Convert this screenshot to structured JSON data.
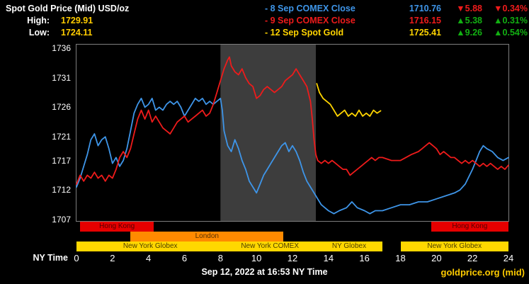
{
  "header": {
    "title": "Spot Gold Price (Mid) USD/oz",
    "high_label": "High:",
    "high_value": "1729.91",
    "low_label": "Low:",
    "low_value": "1724.11",
    "legend": [
      {
        "label": "- 8 Sep COMEX Close",
        "value": "1710.76",
        "change": "▼5.88",
        "change_pct": "▼0.34%",
        "color": "#3e95e8",
        "change_color": "#ee1b1b"
      },
      {
        "label": "- 9 Sep COMEX Close",
        "value": "1716.15",
        "change": "▲5.38",
        "change_pct": "▲0.31%",
        "color": "#ee1b1b",
        "change_color": "#12b012"
      },
      {
        "label": "- 12 Sep Spot Gold",
        "value": "1725.41",
        "change": "▲9.26",
        "change_pct": "▲0.54%",
        "color": "#ffd400",
        "change_color": "#12b012"
      }
    ]
  },
  "footer": {
    "timestamp": "Sep 12, 2022 at 16:53 NY Time",
    "source": "goldprice.org (mid)"
  },
  "colors": {
    "gold": "#ffcc00",
    "white": "#ffffff",
    "up_green": "#12b012",
    "down_red": "#ee1b1b",
    "background": "#000000",
    "plot_border": "#7e7e7e"
  },
  "chart_data": {
    "type": "line",
    "x_label": "NY Time",
    "x_range": [
      0,
      24
    ],
    "x_ticks": [
      "0",
      "2",
      "4",
      "6",
      "8",
      "10",
      "12",
      "14",
      "16",
      "18",
      "20",
      "22",
      "24"
    ],
    "y_ticks": [
      "1736",
      "1731",
      "1726",
      "1721",
      "1717",
      "1712",
      "1707"
    ],
    "y_range": [
      1707,
      1736
    ],
    "grid": false,
    "shade_color": "#3d3d3d",
    "comex_session_shade": {
      "start": 8,
      "end": 13.3
    },
    "series": [
      {
        "name": "8 Sep COMEX Close",
        "color": "#3e95e8",
        "points": [
          [
            0,
            1712.5
          ],
          [
            0.2,
            1714
          ],
          [
            0.4,
            1716
          ],
          [
            0.6,
            1718
          ],
          [
            0.8,
            1720.5
          ],
          [
            1,
            1721.5
          ],
          [
            1.2,
            1719.5
          ],
          [
            1.4,
            1720.5
          ],
          [
            1.6,
            1721
          ],
          [
            1.8,
            1719
          ],
          [
            2,
            1716.5
          ],
          [
            2.2,
            1717.5
          ],
          [
            2.4,
            1716
          ],
          [
            2.6,
            1717
          ],
          [
            2.8,
            1719
          ],
          [
            3,
            1722
          ],
          [
            3.2,
            1725
          ],
          [
            3.4,
            1726.5
          ],
          [
            3.6,
            1727.5
          ],
          [
            3.8,
            1726
          ],
          [
            4,
            1726.5
          ],
          [
            4.2,
            1727.5
          ],
          [
            4.4,
            1725.5
          ],
          [
            4.6,
            1726
          ],
          [
            4.8,
            1725.5
          ],
          [
            5,
            1726.5
          ],
          [
            5.2,
            1727
          ],
          [
            5.4,
            1726.5
          ],
          [
            5.6,
            1727
          ],
          [
            5.8,
            1726
          ],
          [
            6,
            1724.5
          ],
          [
            6.2,
            1725.5
          ],
          [
            6.4,
            1726.5
          ],
          [
            6.6,
            1727.5
          ],
          [
            6.8,
            1727
          ],
          [
            7,
            1727.5
          ],
          [
            7.2,
            1726.5
          ],
          [
            7.4,
            1727
          ],
          [
            7.6,
            1726.5
          ],
          [
            7.8,
            1727
          ],
          [
            8,
            1727.5
          ],
          [
            8.1,
            1725.5
          ],
          [
            8.2,
            1722
          ],
          [
            8.4,
            1719.5
          ],
          [
            8.6,
            1718.5
          ],
          [
            8.8,
            1720.5
          ],
          [
            9,
            1719
          ],
          [
            9.2,
            1717
          ],
          [
            9.4,
            1715.5
          ],
          [
            9.6,
            1713.5
          ],
          [
            9.8,
            1712.5
          ],
          [
            10,
            1711.5
          ],
          [
            10.2,
            1713
          ],
          [
            10.4,
            1714.5
          ],
          [
            10.6,
            1715.5
          ],
          [
            10.8,
            1716.5
          ],
          [
            11,
            1717.5
          ],
          [
            11.2,
            1718.5
          ],
          [
            11.4,
            1719.5
          ],
          [
            11.6,
            1720
          ],
          [
            11.8,
            1718.5
          ],
          [
            12,
            1719.5
          ],
          [
            12.2,
            1718.5
          ],
          [
            12.4,
            1717
          ],
          [
            12.6,
            1715
          ],
          [
            12.8,
            1713.5
          ],
          [
            13,
            1712.5
          ],
          [
            13.2,
            1711.5
          ],
          [
            13.4,
            1710.5
          ],
          [
            13.6,
            1709.5
          ],
          [
            13.8,
            1709
          ],
          [
            14,
            1708.5
          ],
          [
            14.3,
            1708
          ],
          [
            14.6,
            1708.5
          ],
          [
            15,
            1709
          ],
          [
            15.3,
            1710
          ],
          [
            15.6,
            1709
          ],
          [
            16,
            1708.5
          ],
          [
            16.3,
            1708
          ],
          [
            16.6,
            1708.5
          ],
          [
            17,
            1708.5
          ],
          [
            17.5,
            1709
          ],
          [
            18,
            1709.5
          ],
          [
            18.5,
            1709.5
          ],
          [
            19,
            1710
          ],
          [
            19.5,
            1710
          ],
          [
            20,
            1710.5
          ],
          [
            20.5,
            1711
          ],
          [
            21,
            1711.5
          ],
          [
            21.3,
            1712
          ],
          [
            21.6,
            1713
          ],
          [
            22,
            1715.5
          ],
          [
            22.2,
            1717
          ],
          [
            22.4,
            1718.5
          ],
          [
            22.6,
            1719.5
          ],
          [
            22.8,
            1719
          ],
          [
            23.1,
            1718.5
          ],
          [
            23.4,
            1717.5
          ],
          [
            23.7,
            1717
          ],
          [
            24,
            1717.5
          ]
        ]
      },
      {
        "name": "9 Sep COMEX Close",
        "color": "#ee1b1b",
        "points": [
          [
            0,
            1713
          ],
          [
            0.2,
            1714.5
          ],
          [
            0.4,
            1713.5
          ],
          [
            0.6,
            1714.5
          ],
          [
            0.8,
            1714
          ],
          [
            1,
            1715
          ],
          [
            1.2,
            1714
          ],
          [
            1.4,
            1714.5
          ],
          [
            1.6,
            1713.5
          ],
          [
            1.8,
            1714.5
          ],
          [
            2,
            1714
          ],
          [
            2.2,
            1715.5
          ],
          [
            2.4,
            1717.5
          ],
          [
            2.6,
            1718.5
          ],
          [
            2.8,
            1717.5
          ],
          [
            3,
            1719
          ],
          [
            3.2,
            1721.5
          ],
          [
            3.4,
            1724
          ],
          [
            3.6,
            1725.5
          ],
          [
            3.8,
            1724
          ],
          [
            4,
            1725.5
          ],
          [
            4.2,
            1723.5
          ],
          [
            4.4,
            1724.5
          ],
          [
            4.6,
            1723.5
          ],
          [
            4.8,
            1722.5
          ],
          [
            5,
            1722
          ],
          [
            5.2,
            1721.5
          ],
          [
            5.4,
            1722.5
          ],
          [
            5.6,
            1723.5
          ],
          [
            5.8,
            1724
          ],
          [
            6,
            1724.5
          ],
          [
            6.2,
            1723.5
          ],
          [
            6.4,
            1724
          ],
          [
            6.6,
            1724.5
          ],
          [
            6.8,
            1725
          ],
          [
            7,
            1725.5
          ],
          [
            7.2,
            1724.5
          ],
          [
            7.4,
            1725
          ],
          [
            7.6,
            1726.5
          ],
          [
            7.8,
            1728.5
          ],
          [
            8,
            1730.5
          ],
          [
            8.2,
            1732.5
          ],
          [
            8.4,
            1734
          ],
          [
            8.5,
            1734.5
          ],
          [
            8.6,
            1733
          ],
          [
            8.8,
            1732
          ],
          [
            9,
            1731.5
          ],
          [
            9.2,
            1732.5
          ],
          [
            9.4,
            1731
          ],
          [
            9.6,
            1730
          ],
          [
            9.8,
            1729.5
          ],
          [
            10,
            1727.5
          ],
          [
            10.2,
            1728
          ],
          [
            10.4,
            1729
          ],
          [
            10.6,
            1729.5
          ],
          [
            10.8,
            1729
          ],
          [
            11,
            1728.5
          ],
          [
            11.2,
            1729
          ],
          [
            11.4,
            1729.5
          ],
          [
            11.6,
            1730.5
          ],
          [
            11.8,
            1731
          ],
          [
            12,
            1731.5
          ],
          [
            12.2,
            1732.5
          ],
          [
            12.4,
            1731.5
          ],
          [
            12.6,
            1730.5
          ],
          [
            12.8,
            1729.5
          ],
          [
            13,
            1727
          ],
          [
            13.1,
            1724
          ],
          [
            13.2,
            1720.5
          ],
          [
            13.3,
            1718
          ],
          [
            13.4,
            1717
          ],
          [
            13.6,
            1716.5
          ],
          [
            13.8,
            1717
          ],
          [
            14,
            1716.5
          ],
          [
            14.2,
            1717
          ],
          [
            14.4,
            1716.5
          ],
          [
            14.6,
            1716
          ],
          [
            14.8,
            1715.5
          ],
          [
            15,
            1715.5
          ],
          [
            15.2,
            1714.5
          ],
          [
            15.4,
            1715
          ],
          [
            15.6,
            1715.5
          ],
          [
            15.8,
            1716
          ],
          [
            16,
            1716.5
          ],
          [
            16.2,
            1717
          ],
          [
            16.4,
            1717.5
          ],
          [
            16.6,
            1717
          ],
          [
            16.8,
            1717.5
          ],
          [
            17,
            1717.5
          ],
          [
            17.5,
            1717
          ],
          [
            18,
            1717
          ],
          [
            18.3,
            1717.5
          ],
          [
            18.6,
            1718
          ],
          [
            19,
            1718.5
          ],
          [
            19.2,
            1719
          ],
          [
            19.4,
            1719.5
          ],
          [
            19.6,
            1720
          ],
          [
            19.8,
            1719.5
          ],
          [
            20,
            1719
          ],
          [
            20.2,
            1718
          ],
          [
            20.4,
            1718.5
          ],
          [
            20.6,
            1718
          ],
          [
            20.8,
            1717.5
          ],
          [
            21,
            1717.5
          ],
          [
            21.2,
            1717
          ],
          [
            21.4,
            1716.5
          ],
          [
            21.6,
            1717
          ],
          [
            21.8,
            1716.5
          ],
          [
            22,
            1717
          ],
          [
            22.2,
            1716.5
          ],
          [
            22.4,
            1716
          ],
          [
            22.6,
            1716.5
          ],
          [
            22.8,
            1716
          ],
          [
            23,
            1716.5
          ],
          [
            23.2,
            1716
          ],
          [
            23.4,
            1715.5
          ],
          [
            23.6,
            1716
          ],
          [
            23.8,
            1715.5
          ],
          [
            24,
            1716.2
          ]
        ]
      },
      {
        "name": "12 Sep Spot Gold",
        "color": "#ffd400",
        "points": [
          [
            13.35,
            1730
          ],
          [
            13.5,
            1728.5
          ],
          [
            13.7,
            1727.5
          ],
          [
            13.9,
            1727
          ],
          [
            14.1,
            1726.5
          ],
          [
            14.3,
            1725.5
          ],
          [
            14.5,
            1724.5
          ],
          [
            14.7,
            1725
          ],
          [
            14.9,
            1725.5
          ],
          [
            15.1,
            1724.5
          ],
          [
            15.3,
            1725
          ],
          [
            15.5,
            1724.5
          ],
          [
            15.7,
            1725.5
          ],
          [
            15.9,
            1724.5
          ],
          [
            16.1,
            1725
          ],
          [
            16.3,
            1724.5
          ],
          [
            16.5,
            1725.5
          ],
          [
            16.7,
            1725
          ],
          [
            16.9,
            1725.4
          ]
        ]
      }
    ],
    "sessions": [
      {
        "label": "Hong Kong",
        "row": 0,
        "start": 0.2,
        "end": 4.3,
        "color": "#e60000",
        "text_color": "#550000"
      },
      {
        "label": "Hong Kong",
        "row": 0,
        "start": 19.7,
        "end": 24,
        "color": "#e60000",
        "text_color": "#550000"
      },
      {
        "label": "London",
        "row": 1,
        "start": 3,
        "end": 11.5,
        "color": "#ff8a00",
        "text_color": "#553000"
      },
      {
        "label": "New York Globex",
        "row": 2,
        "start": 0,
        "end": 8.2,
        "color": "#ffd700",
        "text_color": "#4d4000"
      },
      {
        "label": "New York COMEX",
        "row": 2,
        "start": 8.2,
        "end": 13.3,
        "color": "#ffd700",
        "text_color": "#4d4000"
      },
      {
        "label": "NY Globex",
        "row": 2,
        "start": 13.3,
        "end": 17,
        "color": "#ffd700",
        "text_color": "#4d4000"
      },
      {
        "label": "New York Globex",
        "row": 2,
        "start": 18,
        "end": 24,
        "color": "#ffd700",
        "text_color": "#4d4000"
      }
    ]
  }
}
